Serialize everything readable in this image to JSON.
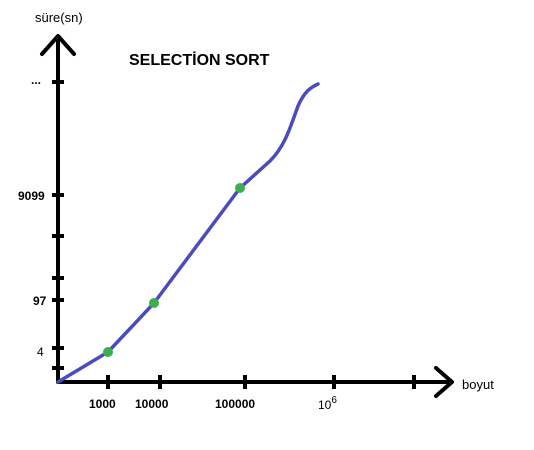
{
  "chart_data": {
    "type": "line",
    "title": "SELECTİON SORT",
    "xlabel": "boyut",
    "ylabel": "süre(sn)",
    "x_ticks": [
      "1000",
      "10000",
      "100000",
      "10",
      ""
    ],
    "x_ticks_superscripts": [
      "",
      "",
      "",
      "6",
      ""
    ],
    "y_ticks": [
      "4",
      "97",
      "9099",
      "...",
      ""
    ],
    "series": [
      {
        "values": [
          [
            1000,
            4
          ],
          [
            10000,
            97
          ],
          [
            100000,
            9099
          ]
        ]
      }
    ],
    "colors": {
      "line": "#4b4bbd",
      "points": "#3dae4f",
      "axes": "#000000"
    },
    "grid": false,
    "legend": "none"
  }
}
